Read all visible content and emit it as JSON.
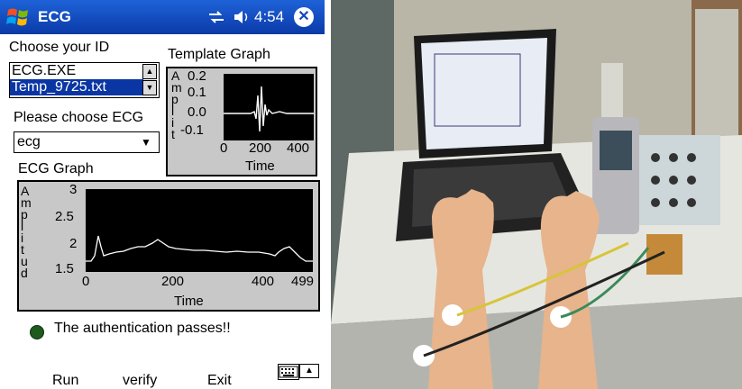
{
  "app": {
    "title": "ECG",
    "time": "4:54"
  },
  "id_section": {
    "label": "Choose your ID",
    "items": [
      "ECG.EXE",
      "Temp_9725.txt"
    ],
    "selected_index": 1
  },
  "template_graph": {
    "title": "Template Graph",
    "ylabel_letters": [
      "A",
      "m",
      "p",
      "l",
      "i",
      "t"
    ],
    "yticks": [
      "0.2",
      "0.1",
      "0.0",
      "-0.1"
    ],
    "xticks": [
      "0",
      "200",
      "400"
    ],
    "xlabel": "Time"
  },
  "ecg_select": {
    "label": "Please choose ECG",
    "value": "ecg"
  },
  "ecg_graph": {
    "title": "ECG Graph",
    "ylabel_letters": [
      "A",
      "m",
      "p",
      "l",
      "i",
      "t",
      "u",
      "d"
    ],
    "yticks": [
      "3",
      "2.5",
      "2",
      "1.5"
    ],
    "xticks": [
      "0",
      "200",
      "400",
      "499"
    ],
    "xlabel": "Time"
  },
  "status": {
    "text": "The authentication passes!!",
    "dot_color": "#1e5a1e"
  },
  "buttons": {
    "run": "Run",
    "verify": "verify",
    "exit": "Exit"
  },
  "icons": [
    "windows-logo-icon",
    "sync-icon",
    "volume-icon",
    "close-icon",
    "keyboard-icon",
    "arrow-up-icon"
  ],
  "photo": {
    "description": "ECG measurement setup"
  },
  "colors": {
    "titlebar": "#0b3aa8",
    "selection": "#0a36a4",
    "graph_bg": "#000000",
    "trace": "#ffffff"
  }
}
